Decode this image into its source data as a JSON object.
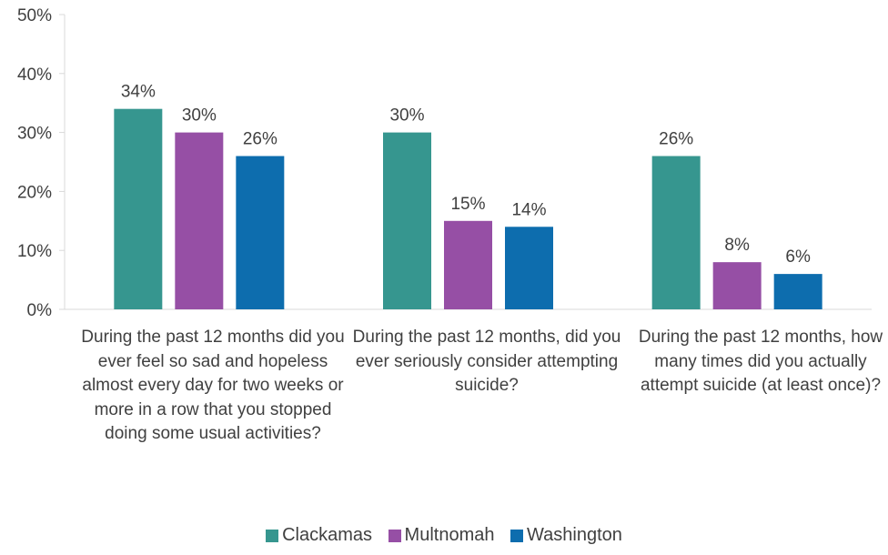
{
  "chart_data": {
    "type": "bar",
    "categories": [
      "During the past 12 months did you ever feel so sad and hopeless almost every day for two weeks or more in a row that you stopped doing some usual activities?",
      "During the past 12 months, did you ever seriously consider attempting suicide?",
      "During the past 12 months, how many times did you actually attempt suicide (at least once)?"
    ],
    "series": [
      {
        "name": "Clackamas",
        "color": "#36968F",
        "values": [
          34,
          30,
          26
        ],
        "labels": [
          "34%",
          "30%",
          "26%"
        ]
      },
      {
        "name": "Multnomah",
        "color": "#964FA5",
        "values": [
          30,
          15,
          8
        ],
        "labels": [
          "30%",
          "15%",
          "8%"
        ]
      },
      {
        "name": "Washington",
        "color": "#0D6DAE",
        "values": [
          26,
          14,
          6
        ],
        "labels": [
          "26%",
          "14%",
          "6%"
        ]
      }
    ],
    "ylim": [
      0,
      50
    ],
    "y_ticks": [
      "0%",
      "10%",
      "20%",
      "30%",
      "40%",
      "50%"
    ],
    "title": "",
    "xlabel": "",
    "ylabel": "",
    "legend_position": "bottom",
    "grid": false
  }
}
